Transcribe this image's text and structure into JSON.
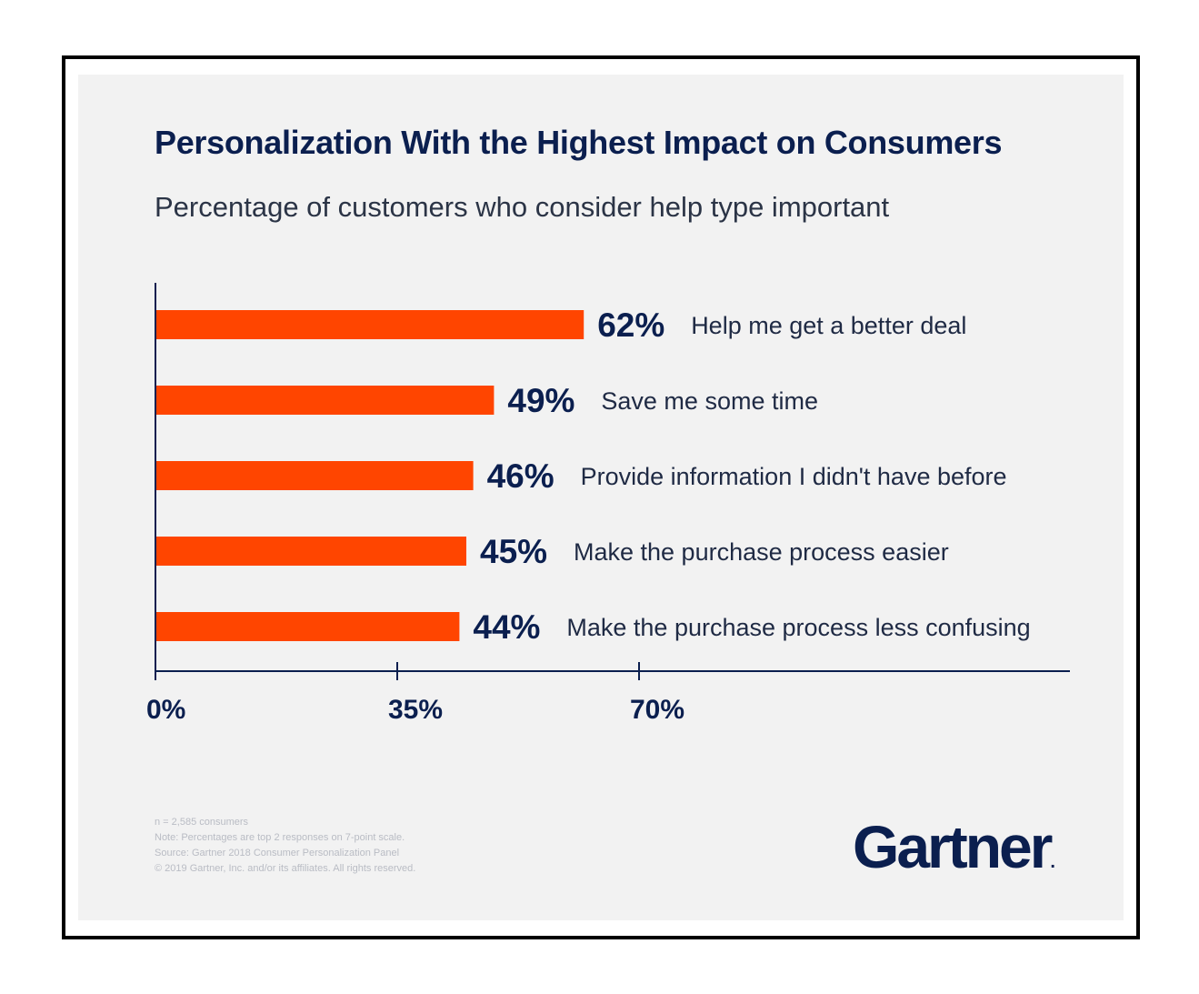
{
  "colors": {
    "bar": "#ff4500",
    "title": "#0b1f4f",
    "axis": "#0b1f4f",
    "background": "#f2f2f2"
  },
  "chart_data": {
    "type": "bar",
    "orientation": "horizontal",
    "title": "Personalization With the Highest Impact on Consumers",
    "subtitle": "Percentage of customers who consider help type important",
    "categories": [
      "Help me get a better deal",
      "Save me some time",
      "Provide information I didn't have before",
      "Make the purchase process easier",
      "Make the purchase process less confusing"
    ],
    "values": [
      62,
      49,
      46,
      45,
      44
    ],
    "value_labels": [
      "62%",
      "49%",
      "46%",
      "45%",
      "44%"
    ],
    "xlim": [
      0,
      132
    ],
    "xticks": [
      0,
      35,
      70
    ],
    "xtick_labels": [
      "0%",
      "35%",
      "70%"
    ],
    "grid": false,
    "legend": "none"
  },
  "footnotes": [
    "n = 2,585 consumers",
    "Note: Percentages are top 2 responses on 7-point scale.",
    "Source: Gartner 2018 Consumer Personalization Panel",
    "© 2019 Gartner, Inc. and/or its affiliates. All rights reserved."
  ],
  "logo": {
    "text": "Gartner",
    "mark": "."
  }
}
